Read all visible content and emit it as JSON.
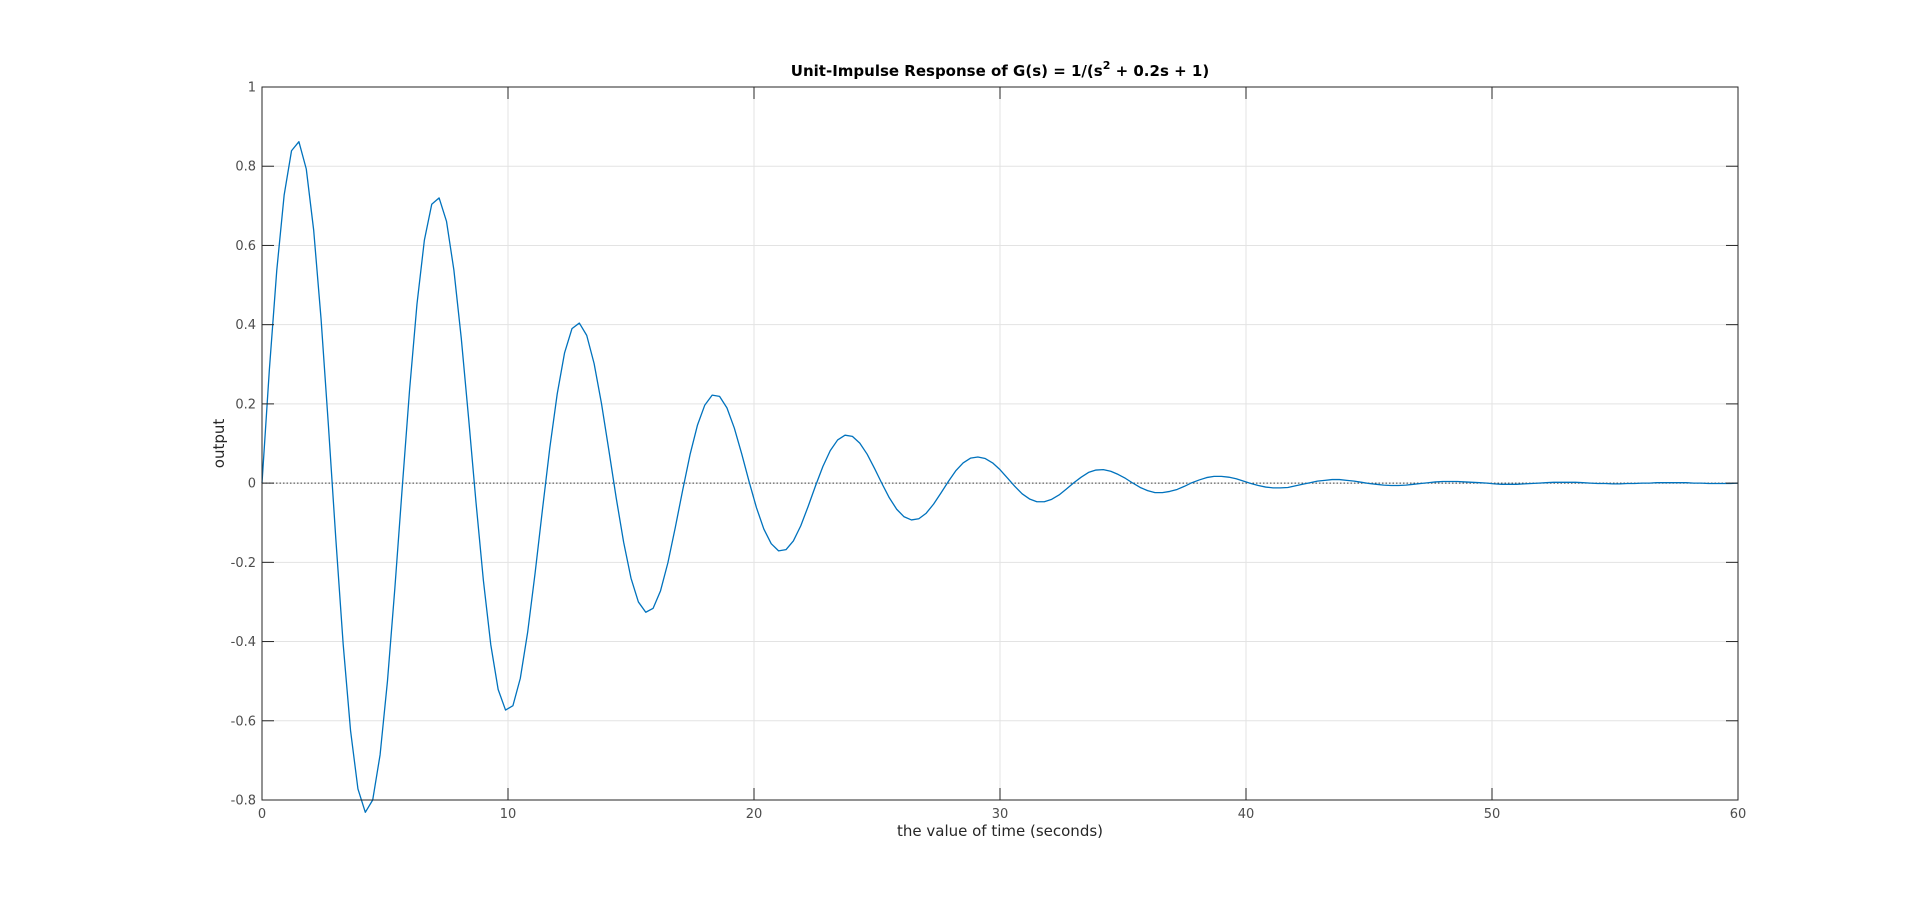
{
  "chart_data": {
    "type": "line",
    "title_prefix": "Unit-Impulse Response of G(s) = 1/(s",
    "title_superscript": "2",
    "title_suffix": " + 0.2s + 1)",
    "xlabel": "the value of time (seconds)",
    "ylabel": "output",
    "xlim": [
      0,
      60
    ],
    "ylim": [
      -0.8,
      1
    ],
    "xticks": [
      "0",
      "10",
      "20",
      "30",
      "40",
      "50",
      "60"
    ],
    "yticks": [
      "-0.8",
      "-0.6",
      "-0.4",
      "-0.2",
      "0",
      "0.2",
      "0.4",
      "0.6",
      "0.8",
      "1"
    ],
    "grid": true,
    "zero_line": true,
    "colors": {
      "series": "#0072bd",
      "grid": "#e3e3e3",
      "axes": "#262626",
      "zero_line": "#404040"
    },
    "series": [
      {
        "x": [
          0,
          0.3,
          0.6,
          0.9,
          1.2,
          1.5,
          1.8,
          2.1,
          2.4,
          2.7,
          3.0,
          3.3,
          3.6,
          3.9,
          4.2,
          4.5,
          4.8,
          5.1,
          5.4,
          5.7,
          6.0,
          6.3,
          6.6,
          6.9,
          7.2,
          7.5,
          7.8,
          8.1,
          8.4,
          8.7,
          9.0,
          9.3,
          9.6,
          9.9,
          10.2,
          10.5,
          10.8,
          11.1,
          11.4,
          11.7,
          12.0,
          12.3,
          12.6,
          12.9,
          13.2,
          13.5,
          13.8,
          14.1,
          14.4,
          14.7,
          15.0,
          15.3,
          15.6,
          15.9,
          16.2,
          16.5,
          16.8,
          17.1,
          17.4,
          17.7,
          18.0,
          18.3,
          18.6,
          18.9,
          19.2,
          19.5,
          19.8,
          20.1,
          20.4,
          20.7,
          21.0,
          21.3,
          21.6,
          21.9,
          22.2,
          22.5,
          22.8,
          23.1,
          23.4,
          23.7,
          24.0,
          24.3,
          24.6,
          24.9,
          25.2,
          25.5,
          25.8,
          26.1,
          26.4,
          26.7,
          27.0,
          27.3,
          27.6,
          27.9,
          28.2,
          28.5,
          28.8,
          29.1,
          29.4,
          29.7,
          30.0,
          30.3,
          30.6,
          30.9,
          31.2,
          31.5,
          31.8,
          32.1,
          32.4,
          32.7,
          33.0,
          33.3,
          33.6,
          33.9,
          34.2,
          34.5,
          34.8,
          35.1,
          35.4,
          35.7,
          36.0,
          36.3,
          36.6,
          36.9,
          37.2,
          37.5,
          37.8,
          38.1,
          38.4,
          38.7,
          39.0,
          39.3,
          39.6,
          39.9,
          40.2,
          40.5,
          40.8,
          41.1,
          41.4,
          41.7,
          42.0,
          42.3,
          42.6,
          42.9,
          43.2,
          43.5,
          43.8,
          44.1,
          44.4,
          44.7,
          45.0,
          45.3,
          45.6,
          45.9,
          46.2,
          46.5,
          46.8,
          47.1,
          47.4,
          47.7,
          48.0,
          48.3,
          48.6,
          48.9,
          49.2,
          49.5,
          49.8,
          50.1,
          50.4,
          50.7,
          51.0,
          51.3,
          51.6,
          51.9,
          52.2,
          52.5,
          52.8,
          53.1,
          53.4,
          53.7,
          54.0,
          54.3,
          54.6,
          54.9,
          55.2,
          55.5,
          55.8,
          56.1,
          56.4,
          56.7,
          57.0,
          57.3,
          57.6,
          57.9,
          58.2,
          58.5,
          58.8,
          59.1,
          59.4,
          59.7,
          60.0
        ],
        "y": [
          0,
          0.287,
          0.537,
          0.727,
          0.839,
          0.862,
          0.793,
          0.639,
          0.415,
          0.145,
          -0.14,
          -0.407,
          -0.625,
          -0.772,
          -0.831,
          -0.8,
          -0.686,
          -0.5,
          -0.266,
          -0.012,
          0.236,
          0.452,
          0.613,
          0.704,
          0.72,
          0.661,
          0.538,
          0.366,
          0.163,
          -0.049,
          -0.246,
          -0.408,
          -0.521,
          -0.573,
          -0.562,
          -0.493,
          -0.376,
          -0.228,
          -0.067,
          0.089,
          0.225,
          0.329,
          0.39,
          0.404,
          0.373,
          0.302,
          0.201,
          0.083,
          -0.038,
          -0.149,
          -0.24,
          -0.3,
          -0.326,
          -0.316,
          -0.272,
          -0.201,
          -0.112,
          -0.018,
          0.072,
          0.146,
          0.197,
          0.222,
          0.219,
          0.19,
          0.139,
          0.074,
          0.004,
          -0.062,
          -0.116,
          -0.153,
          -0.171,
          -0.168,
          -0.146,
          -0.108,
          -0.059,
          -0.007,
          0.042,
          0.082,
          0.109,
          0.121,
          0.118,
          0.101,
          0.073,
          0.037,
          -0.001,
          -0.037,
          -0.066,
          -0.085,
          -0.093,
          -0.09,
          -0.076,
          -0.053,
          -0.025,
          0.004,
          0.031,
          0.051,
          0.063,
          0.066,
          0.062,
          0.051,
          0.034,
          0.013,
          -0.008,
          -0.027,
          -0.04,
          -0.047,
          -0.047,
          -0.041,
          -0.03,
          -0.015,
          0.001,
          0.015,
          0.027,
          0.033,
          0.034,
          0.03,
          0.022,
          0.012,
          0.0,
          -0.011,
          -0.019,
          -0.024,
          -0.024,
          -0.021,
          -0.016,
          -0.008,
          0.001,
          0.008,
          0.014,
          0.017,
          0.017,
          0.015,
          0.011,
          0.005,
          -0.001,
          -0.006,
          -0.01,
          -0.012,
          -0.012,
          -0.011,
          -0.007,
          -0.003,
          0.001,
          0.005,
          0.007,
          0.009,
          0.009,
          0.007,
          0.005,
          0.002,
          -0.001,
          -0.003,
          -0.005,
          -0.006,
          -0.006,
          -0.005,
          -0.003,
          -0.001,
          0.001,
          0.003,
          0.004,
          0.004,
          0.004,
          0.003,
          0.002,
          0.001,
          0,
          -0.002,
          -0.003,
          -0.003,
          -0.003,
          -0.002,
          -0.001,
          0,
          0.001,
          0.002,
          0.002,
          0.002,
          0.002,
          0.001,
          0,
          -0.001,
          -0.001,
          -0.002,
          -0.002,
          -0.001,
          -0.001,
          0,
          0,
          0.001,
          0.001,
          0.001,
          0.001,
          0.001,
          0,
          0,
          -0.001,
          -0.001,
          -0.001,
          -0.001,
          0
        ]
      }
    ]
  }
}
